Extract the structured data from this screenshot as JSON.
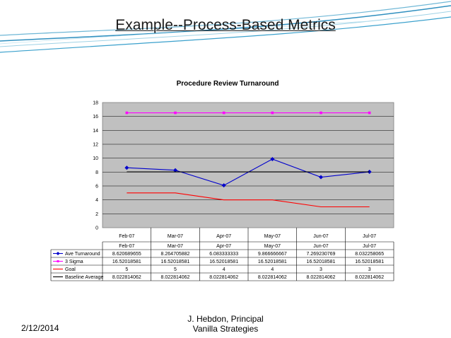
{
  "slide": {
    "title": "Example--Process-Based Metrics",
    "footer_date": "2/12/2014",
    "footer_author_line1": "J. Hebdon, Principal",
    "footer_author_line2": "Vanilla Strategies"
  },
  "chart_data": {
    "type": "line",
    "title": "Procedure Review Turnaround",
    "categories": [
      "Feb-07",
      "Mar-07",
      "Apr-07",
      "May-07",
      "Jun-07",
      "Jul-07"
    ],
    "ylim": [
      0,
      18
    ],
    "yticks": [
      0,
      2,
      4,
      6,
      8,
      10,
      12,
      14,
      16,
      18
    ],
    "grid": true,
    "legend_placement": "data-table",
    "series": [
      {
        "name": "Ave Turnaround",
        "color": "#0000cc",
        "marker": "diamond",
        "values": [
          8.620689655,
          8.264705882,
          6.083333333,
          9.866666667,
          7.269230769,
          8.032258065
        ],
        "labels": [
          "8.620689655",
          "8.264705882",
          "6.083333333",
          "9.866666667",
          "7.269230769",
          "8.032258065"
        ]
      },
      {
        "name": "3 Sigma",
        "color": "#ff00ff",
        "marker": "square",
        "values": [
          16.52018581,
          16.52018581,
          16.52018581,
          16.52018581,
          16.52018581,
          16.52018581
        ],
        "labels": [
          "16.52018581",
          "16.52018581",
          "16.52018581",
          "16.52018581",
          "16.52018581",
          "16.52018581"
        ]
      },
      {
        "name": "Goal",
        "color": "#ff0000",
        "marker": "none",
        "values": [
          5,
          5,
          4,
          4,
          3,
          3
        ],
        "labels": [
          "5",
          "5",
          "4",
          "4",
          "3",
          "3"
        ]
      },
      {
        "name": "Baseline Average",
        "color": "#000000",
        "marker": "none",
        "values": [
          8.022814062,
          8.022814062,
          8.022814062,
          8.022814062,
          8.022814062,
          8.022814062
        ],
        "labels": [
          "8.022814062",
          "8.022814062",
          "8.022814062",
          "8.022814062",
          "8.022814062",
          "8.022814062"
        ]
      }
    ]
  }
}
